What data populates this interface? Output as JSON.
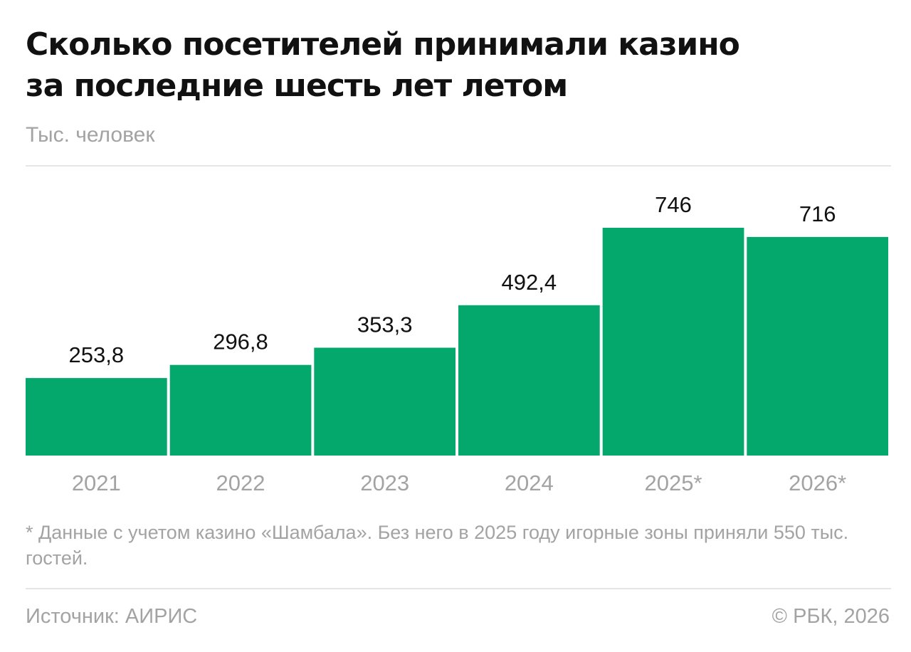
{
  "header": {
    "title_line1": "Сколько посетителей принимали казино",
    "title_line2": "за последние шесть лет летом",
    "subtitle": "Тыс. человек"
  },
  "chart_data": {
    "type": "bar",
    "categories": [
      "2021",
      "2022",
      "2023",
      "2024",
      "2025*",
      "2026*"
    ],
    "values": [
      253.8,
      296.8,
      353.3,
      492.4,
      746,
      716
    ],
    "value_labels": [
      "253,8",
      "296,8",
      "353,3",
      "492,4",
      "746",
      "716"
    ],
    "title": "Сколько посетителей принимали казино за последние шесть лет летом",
    "ylabel": "Тыс. человек",
    "ylim": [
      0,
      746
    ],
    "bar_color": "#04a86c",
    "grid": false,
    "legend": "none"
  },
  "footer": {
    "note": "* Данные с учетом казино «Шамбала». Без него в 2025 году игорные зоны приняли 550 тыс. гостей.",
    "source": "Источник: АИРИС",
    "copyright": "© РБК, 2026"
  },
  "colors": {
    "bar": "#04a86c",
    "muted_text": "#a3a3a3",
    "rule": "#e6e6e6"
  }
}
